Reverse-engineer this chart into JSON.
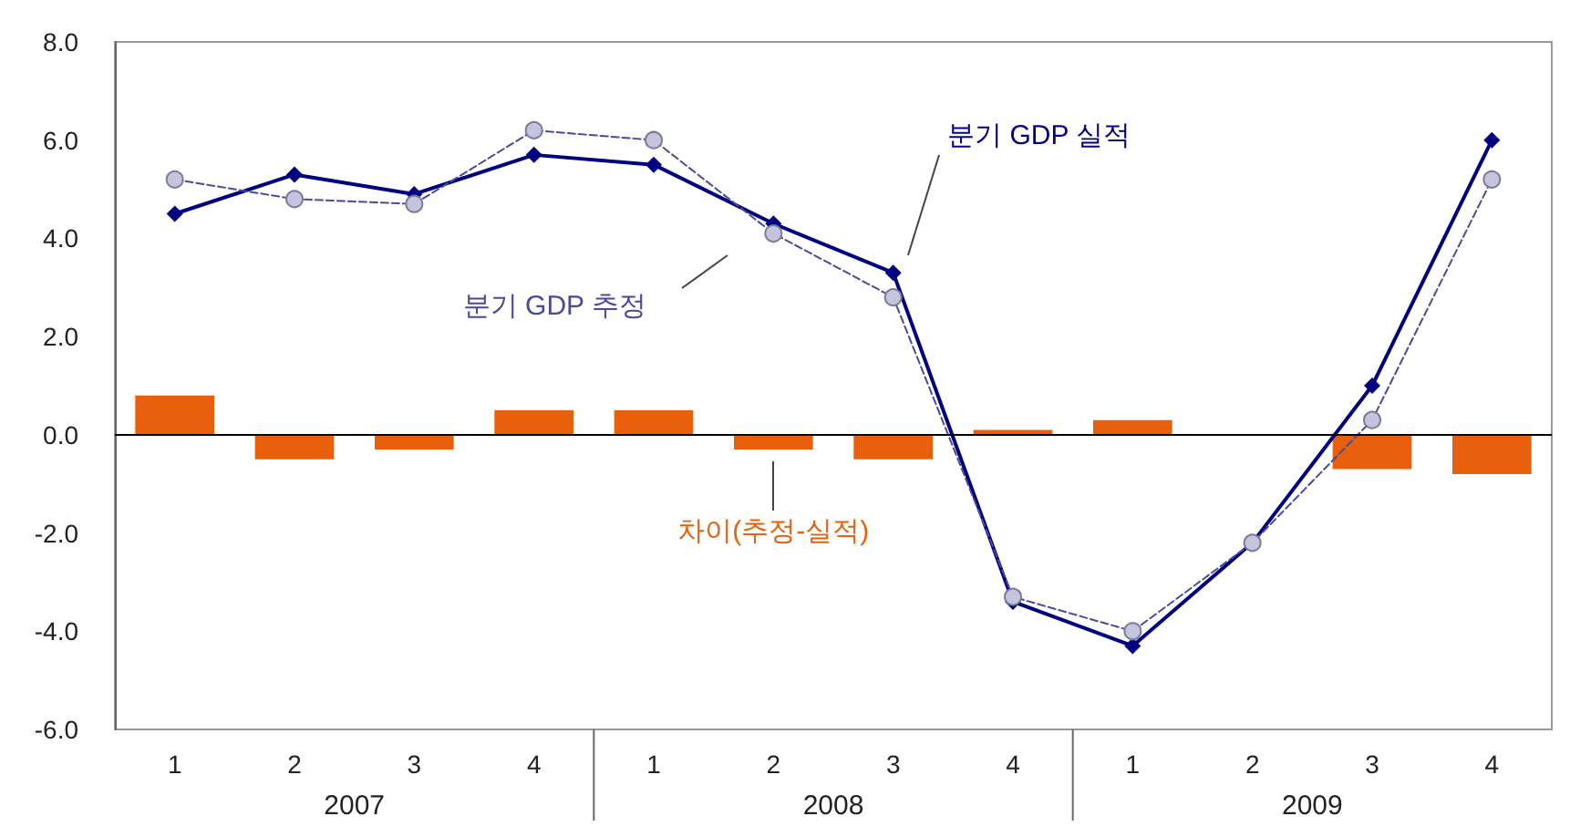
{
  "chart_data": {
    "type": "line",
    "categories": [
      "1",
      "2",
      "3",
      "4",
      "1",
      "2",
      "3",
      "4",
      "1",
      "2",
      "3",
      "4"
    ],
    "annotations": [
      "2007",
      "2008",
      "2009"
    ],
    "series": [
      {
        "name": "차이(추정-실적)",
        "type": "bar",
        "color": "#e8600c",
        "values": [
          0.8,
          -0.5,
          -0.3,
          0.5,
          0.5,
          -0.3,
          -0.5,
          0.1,
          0.3,
          0.0,
          -0.7,
          -0.8
        ]
      },
      {
        "name": "분기 GDP 추정",
        "color": "#4a4a9a",
        "marker": "circle",
        "line_style": "dashed",
        "values": [
          5.2,
          4.8,
          4.7,
          6.2,
          6.0,
          4.1,
          2.8,
          -3.3,
          -4.0,
          -2.2,
          0.3,
          5.2
        ]
      },
      {
        "name": "분기 GDP 실적",
        "color": "#000080",
        "marker": "diamond",
        "line_style": "solid",
        "values": [
          4.5,
          5.3,
          4.9,
          5.7,
          5.5,
          4.3,
          3.3,
          -3.4,
          -4.3,
          -2.2,
          1.0,
          6.0
        ]
      }
    ],
    "ylim": [
      -6,
      8
    ],
    "yticks": [
      {
        "value": -6,
        "label": "-6.0"
      },
      {
        "value": -4,
        "label": "-4.0"
      },
      {
        "value": -2,
        "label": "-2.0"
      },
      {
        "value": 0,
        "label": "0.0"
      },
      {
        "value": 2,
        "label": "2.0"
      },
      {
        "value": 4,
        "label": "4.0"
      },
      {
        "value": 6,
        "label": "6.0"
      },
      {
        "value": 8,
        "label": "8.0"
      }
    ],
    "ref_lines": [
      {
        "axis": "y",
        "value": 0,
        "color": "#000000"
      }
    ],
    "grid": false,
    "legend": false
  }
}
